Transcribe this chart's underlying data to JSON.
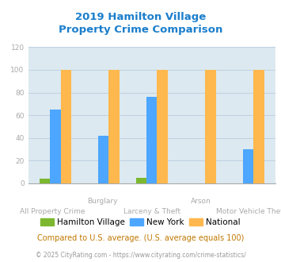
{
  "title_line1": "2019 Hamilton Village",
  "title_line2": "Property Crime Comparison",
  "title_color": "#1a7ecc",
  "hamilton_values": [
    4,
    0,
    5,
    0,
    0
  ],
  "newyork_values": [
    65,
    42,
    76,
    0,
    30
  ],
  "national_values": [
    100,
    100,
    100,
    100,
    100
  ],
  "hamilton_color": "#7cb82f",
  "newyork_color": "#4da6ff",
  "national_color": "#ffb84d",
  "ylim": [
    0,
    120
  ],
  "yticks": [
    0,
    20,
    40,
    60,
    80,
    100,
    120
  ],
  "grid_color": "#bbccdd",
  "bg_color": "#dce9f0",
  "top_labels": [
    "",
    "Burglary",
    "",
    "Arson",
    ""
  ],
  "bottom_labels": [
    "All Property Crime",
    "",
    "Larceny & Theft",
    "",
    "Motor Vehicle Theft"
  ],
  "legend_labels": [
    "Hamilton Village",
    "New York",
    "National"
  ],
  "footnote1": "Compared to U.S. average. (U.S. average equals 100)",
  "footnote2": "© 2025 CityRating.com - https://www.cityrating.com/crime-statistics/",
  "footnote1_color": "#c07800",
  "footnote2_color": "#999999",
  "label_color": "#aaaaaa"
}
